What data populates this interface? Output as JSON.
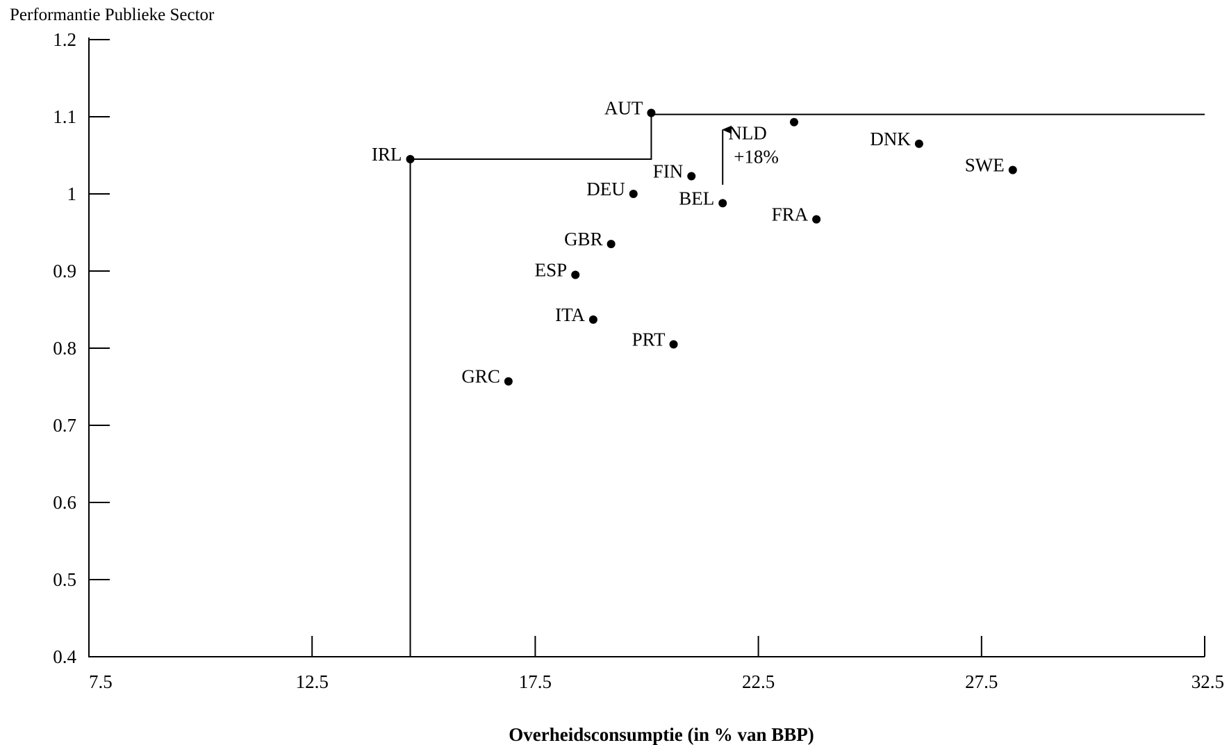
{
  "chart_data": {
    "type": "scatter",
    "title": "",
    "xlabel": "Overheidsconsumptie (in % van BBP)",
    "ylabel": "Performantie Publieke Sector",
    "xlim": [
      7.5,
      32.5
    ],
    "ylim": [
      0.4,
      1.2
    ],
    "x_ticks": [
      7.5,
      12.5,
      17.5,
      22.5,
      27.5,
      32.5
    ],
    "x_tick_labels": [
      "7.5",
      "12.5",
      "17.5",
      "22.5",
      "27.5",
      "32.5"
    ],
    "y_ticks": [
      0.4,
      0.5,
      0.6,
      0.7,
      0.8,
      0.9,
      1.0,
      1.1,
      1.2
    ],
    "y_tick_labels": [
      "0.4",
      "0.5",
      "0.6",
      "0.7",
      "0.8",
      "0.9",
      "1",
      "1.1",
      "1.2"
    ],
    "grid": false,
    "legend": "none",
    "points": [
      {
        "label": "IRL",
        "x": 14.7,
        "y": 1.045
      },
      {
        "label": "AUT",
        "x": 20.1,
        "y": 1.105
      },
      {
        "label": "",
        "x": 23.3,
        "y": 1.093
      },
      {
        "label": "DNK",
        "x": 26.1,
        "y": 1.065
      },
      {
        "label": "SWE",
        "x": 28.2,
        "y": 1.031
      },
      {
        "label": "FIN",
        "x": 21.0,
        "y": 1.023
      },
      {
        "label": "DEU",
        "x": 19.7,
        "y": 1.0
      },
      {
        "label": "BEL",
        "x": 21.7,
        "y": 0.988
      },
      {
        "label": "FRA",
        "x": 23.8,
        "y": 0.967
      },
      {
        "label": "GBR",
        "x": 19.2,
        "y": 0.935
      },
      {
        "label": "ESP",
        "x": 18.4,
        "y": 0.895
      },
      {
        "label": "ITA",
        "x": 18.8,
        "y": 0.837
      },
      {
        "label": "PRT",
        "x": 20.6,
        "y": 0.805
      },
      {
        "label": "GRC",
        "x": 16.9,
        "y": 0.757
      }
    ],
    "frontier": [
      [
        14.7,
        0.4
      ],
      [
        14.7,
        1.045
      ],
      [
        20.1,
        1.045
      ],
      [
        20.1,
        1.103
      ],
      [
        32.5,
        1.103
      ]
    ],
    "annotation": {
      "label": "NLD",
      "sublabel": "+18%",
      "x": 21.7,
      "y_from": 1.01,
      "y_to": 1.085
    }
  }
}
